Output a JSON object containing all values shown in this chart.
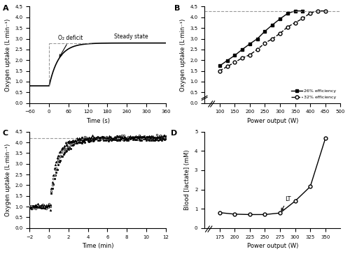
{
  "fig_width": 5.0,
  "fig_height": 3.64,
  "dpi": 100,
  "background": "#ffffff",
  "panel_A": {
    "label": "A",
    "rest_vo2": 0.8,
    "steady_state": 2.8,
    "tau": 30,
    "t_start": -60,
    "t_end": 360,
    "ylim": [
      0.0,
      4.5
    ],
    "yticks": [
      0.0,
      0.5,
      1.0,
      1.5,
      2.0,
      2.5,
      3.0,
      3.5,
      4.0,
      4.5
    ],
    "xticks": [
      -60,
      0,
      60,
      120,
      180,
      240,
      300,
      360
    ],
    "xlabel": "Time (s)",
    "ylabel": "Oxygen uptake (L·min⁻¹)",
    "annotation_o2deficit": "O₂ deficit",
    "annotation_steady": "Steady state",
    "dashed_y": 2.8
  },
  "panel_B": {
    "label": "B",
    "eff26_x": [
      100,
      125,
      150,
      175,
      200,
      225,
      250,
      275,
      300,
      325,
      350,
      375
    ],
    "eff26_y": [
      1.73,
      1.98,
      2.22,
      2.5,
      2.76,
      3.0,
      3.35,
      3.65,
      3.93,
      4.18,
      4.3,
      4.3
    ],
    "eff32_x": [
      100,
      125,
      150,
      175,
      200,
      225,
      250,
      275,
      300,
      325,
      350,
      375,
      400,
      425,
      450
    ],
    "eff32_y": [
      1.5,
      1.7,
      1.9,
      2.1,
      2.25,
      2.5,
      2.8,
      3.0,
      3.25,
      3.55,
      3.75,
      3.95,
      4.2,
      4.3,
      4.3
    ],
    "dashed_y": 4.3,
    "ylim": [
      0.0,
      4.5
    ],
    "xlim": [
      50,
      500
    ],
    "xticks": [
      100,
      150,
      200,
      250,
      300,
      350,
      400,
      450,
      500
    ],
    "yticks": [
      0.0,
      0.5,
      1.0,
      1.5,
      2.0,
      2.5,
      3.0,
      3.5,
      4.0,
      4.5
    ],
    "xlabel": "Power output (W)",
    "ylabel": "Oxygen uptake (L·min⁻¹)",
    "legend_eff26": "26% efficiency",
    "legend_eff32": "32% efficiency"
  },
  "panel_C": {
    "label": "C",
    "dashed_y": 4.2,
    "ylim": [
      0.0,
      4.5
    ],
    "xlim": [
      -2,
      12
    ],
    "xticks": [
      -2,
      0,
      2,
      4,
      6,
      8,
      10,
      12
    ],
    "yticks": [
      0.0,
      0.5,
      1.0,
      1.5,
      2.0,
      2.5,
      3.0,
      3.5,
      4.0,
      4.5
    ],
    "xlabel": "Time (min)",
    "ylabel": "Oxygen uptake (L·min⁻¹)",
    "rest_vo2": 1.0,
    "ss_vo2": 4.15,
    "taus": [
      1.0,
      0.8,
      0.65
    ],
    "noise_scales": [
      0.04,
      0.05,
      0.055
    ],
    "slow_component": [
      0.0,
      0.08,
      0.12
    ]
  },
  "panel_D": {
    "label": "D",
    "x": [
      175,
      200,
      225,
      250,
      275,
      300,
      325,
      350
    ],
    "y": [
      0.8,
      0.72,
      0.7,
      0.7,
      0.78,
      1.4,
      2.15,
      4.65
    ],
    "lt_x": 275,
    "lt_y": 0.78,
    "ylim": [
      0.0,
      5.0
    ],
    "xlim": [
      150,
      375
    ],
    "xticks": [
      175,
      200,
      225,
      250,
      275,
      300,
      325,
      350
    ],
    "yticks": [
      0.0,
      1.0,
      2.0,
      3.0,
      4.0,
      5.0
    ],
    "xlabel": "Power output (W)",
    "ylabel": "Blood [lactate] (mM)",
    "annotation_lt": "LT"
  }
}
